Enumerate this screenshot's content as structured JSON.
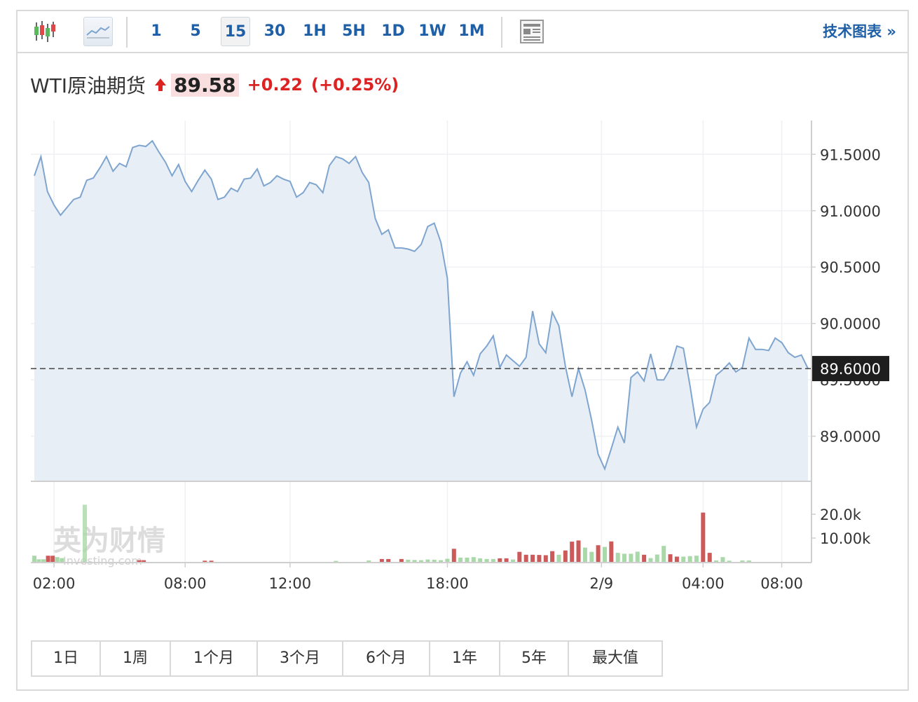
{
  "toolbar": {
    "candlestick_icon": "candlestick-icon",
    "line_icon": "area-chart-icon",
    "timeframes": [
      "1",
      "5",
      "15",
      "30",
      "1H",
      "5H",
      "1D",
      "1W",
      "1M"
    ],
    "active_timeframe": "15",
    "news_icon": "news-icon",
    "tech_chart_label": "技术图表 »"
  },
  "instrument": {
    "name": "WTI原油期货",
    "price": "89.58",
    "change": "+0.22",
    "change_pct": "(+0.25%)",
    "direction_icon": "up-arrow-icon"
  },
  "colors": {
    "line": "#7ea5cf",
    "area": "#e8eef6",
    "up": "#dd2222",
    "vol_up": "#cc5a5a",
    "vol_down": "#a9d8a9",
    "link": "#1f5fa6"
  },
  "chart_data": {
    "type": "area",
    "price_ylim": [
      88.6,
      91.8
    ],
    "y_ticks": [
      "91.5000",
      "91.0000",
      "90.5000",
      "90.0000",
      "89.5000",
      "89.0000"
    ],
    "current_value": "89.6000",
    "volume_ticks": [
      "20.0k",
      "10.00k"
    ],
    "volume_ylim": [
      0,
      30000
    ],
    "x_ticks": [
      "02:00",
      "08:00",
      "12:00",
      "18:00",
      "2/9",
      "04:00",
      "08:00"
    ],
    "watermark": "英为财情 Investing.com",
    "series": [
      {
        "values": [
          91.31,
          91.48,
          91.17,
          91.05,
          90.96,
          91.03,
          91.1,
          91.12,
          91.27,
          91.29,
          91.38,
          91.48,
          91.35,
          91.42,
          91.39,
          91.56,
          91.58,
          91.57,
          91.62,
          91.52,
          91.43,
          91.31,
          91.41,
          91.26,
          91.17,
          91.27,
          91.36,
          91.28,
          91.1,
          91.12,
          91.2,
          91.17,
          91.28,
          91.29,
          91.37,
          91.22,
          91.25,
          91.31,
          91.28,
          91.26,
          91.12,
          91.16,
          91.25,
          91.23,
          91.16,
          91.4,
          91.48,
          91.46,
          91.42,
          91.48,
          91.34,
          91.25,
          90.93,
          90.79,
          90.83,
          90.67,
          90.67,
          90.66,
          90.64,
          90.7,
          90.86,
          90.89,
          90.72,
          90.4,
          89.35,
          89.56,
          89.66,
          89.54,
          89.73,
          89.8,
          89.89,
          89.61,
          89.72,
          89.67,
          89.62,
          89.7,
          90.11,
          89.82,
          89.74,
          90.1,
          89.98,
          89.62,
          89.35,
          89.6,
          89.41,
          89.14,
          88.84,
          88.71,
          88.89,
          89.08,
          88.94,
          89.52,
          89.57,
          89.49,
          89.73,
          89.5,
          89.5,
          89.6,
          89.8,
          89.78,
          89.45,
          89.08,
          89.24,
          89.3,
          89.54,
          89.59,
          89.65,
          89.57,
          89.61,
          89.87,
          89.77,
          89.77,
          89.76,
          89.87,
          89.83,
          89.74,
          89.7,
          89.72,
          89.6
        ]
      }
    ],
    "volume": [
      2600,
      1100,
      1100,
      2600,
      2600,
      2000,
      1600,
      0,
      0,
      0,
      0,
      0,
      0,
      0,
      0,
      0,
      0,
      0,
      0,
      0,
      0,
      0,
      0,
      0,
      0,
      0,
      0,
      0,
      0,
      0,
      0,
      0,
      0,
      0,
      0,
      0,
      0,
      0,
      0,
      0,
      0,
      0,
      0,
      0,
      0,
      0,
      0,
      0,
      0,
      0,
      0,
      0,
      0,
      0,
      0,
      0,
      0,
      0,
      0,
      0,
      0,
      0,
      0,
      0,
      0,
      0,
      0,
      0,
      0,
      0,
      0,
      0,
      0,
      0,
      0,
      0,
      0,
      0,
      0,
      0,
      0,
      0,
      0,
      0,
      0,
      0,
      0,
      0,
      0,
      0,
      0,
      0,
      0,
      0,
      0,
      0,
      0,
      0,
      0,
      0,
      0,
      0,
      0,
      0,
      0,
      0,
      0,
      0,
      0,
      0,
      0,
      0,
      0,
      0,
      0,
      0,
      0,
      0,
      0
    ],
    "volume_bars": [
      {
        "t": 0.0,
        "v": 2600,
        "up": false
      },
      {
        "t": 0.7,
        "v": 1100,
        "up": false
      },
      {
        "t": 1.4,
        "v": 1100,
        "up": false
      },
      {
        "t": 2.1,
        "v": 2600,
        "up": true
      },
      {
        "t": 2.8,
        "v": 2600,
        "up": true
      },
      {
        "t": 3.5,
        "v": 2000,
        "up": false
      },
      {
        "t": 4.2,
        "v": 1600,
        "up": false
      },
      {
        "t": 16.0,
        "v": 700,
        "up": true
      },
      {
        "t": 16.7,
        "v": 700,
        "up": true
      },
      {
        "t": 26.0,
        "v": 500,
        "up": true
      },
      {
        "t": 27.0,
        "v": 500,
        "up": true
      },
      {
        "t": 46.0,
        "v": 400,
        "up": false
      },
      {
        "t": 51.0,
        "v": 600,
        "up": false
      },
      {
        "t": 53.0,
        "v": 1200,
        "up": true
      },
      {
        "t": 54.0,
        "v": 1200,
        "up": true
      },
      {
        "t": 56.0,
        "v": 1200,
        "up": true
      },
      {
        "t": 57.0,
        "v": 900,
        "up": false
      },
      {
        "t": 58.0,
        "v": 800,
        "up": false
      },
      {
        "t": 59.0,
        "v": 700,
        "up": false
      },
      {
        "t": 60.0,
        "v": 1000,
        "up": false
      },
      {
        "t": 61.0,
        "v": 900,
        "up": false
      },
      {
        "t": 62.0,
        "v": 700,
        "up": false
      },
      {
        "t": 63.0,
        "v": 1300,
        "up": false
      },
      {
        "t": 64.0,
        "v": 5500,
        "up": true
      },
      {
        "t": 65.0,
        "v": 1800,
        "up": false
      },
      {
        "t": 66.0,
        "v": 1800,
        "up": false
      },
      {
        "t": 67.0,
        "v": 2000,
        "up": false
      },
      {
        "t": 68.0,
        "v": 1500,
        "up": false
      },
      {
        "t": 69.0,
        "v": 1200,
        "up": false
      },
      {
        "t": 70.0,
        "v": 1200,
        "up": false
      },
      {
        "t": 71.0,
        "v": 1500,
        "up": true
      },
      {
        "t": 72.0,
        "v": 1500,
        "up": true
      },
      {
        "t": 73.0,
        "v": 1000,
        "up": false
      },
      {
        "t": 74.0,
        "v": 4200,
        "up": true
      },
      {
        "t": 75.0,
        "v": 3000,
        "up": true
      },
      {
        "t": 76.0,
        "v": 3000,
        "up": true
      },
      {
        "t": 77.0,
        "v": 2900,
        "up": true
      },
      {
        "t": 78.0,
        "v": 2800,
        "up": true
      },
      {
        "t": 79.0,
        "v": 4500,
        "up": true
      },
      {
        "t": 80.0,
        "v": 3000,
        "up": false
      },
      {
        "t": 81.0,
        "v": 4800,
        "up": true
      },
      {
        "t": 82.0,
        "v": 8500,
        "up": true
      },
      {
        "t": 83.0,
        "v": 9000,
        "up": true
      },
      {
        "t": 84.0,
        "v": 6000,
        "up": false
      },
      {
        "t": 85.0,
        "v": 4200,
        "up": false
      },
      {
        "t": 86.0,
        "v": 7000,
        "up": true
      },
      {
        "t": 87.0,
        "v": 6300,
        "up": false
      },
      {
        "t": 88.0,
        "v": 8600,
        "up": true
      },
      {
        "t": 89.0,
        "v": 3800,
        "up": false
      },
      {
        "t": 90.0,
        "v": 3400,
        "up": false
      },
      {
        "t": 91.0,
        "v": 3400,
        "up": false
      },
      {
        "t": 92.0,
        "v": 4300,
        "up": false
      },
      {
        "t": 93.0,
        "v": 3000,
        "up": true
      },
      {
        "t": 94.0,
        "v": 1600,
        "up": false
      },
      {
        "t": 95.0,
        "v": 3100,
        "up": false
      },
      {
        "t": 96.0,
        "v": 6700,
        "up": false
      },
      {
        "t": 97.0,
        "v": 3200,
        "up": true
      },
      {
        "t": 98.0,
        "v": 2200,
        "up": true
      },
      {
        "t": 99.0,
        "v": 2200,
        "up": false
      },
      {
        "t": 100.0,
        "v": 2400,
        "up": false
      },
      {
        "t": 101.0,
        "v": 2600,
        "up": false
      },
      {
        "t": 102.0,
        "v": 20700,
        "up": true
      },
      {
        "t": 103.0,
        "v": 3800,
        "up": true
      },
      {
        "t": 104.0,
        "v": 600,
        "up": false
      },
      {
        "t": 105.0,
        "v": 2000,
        "up": false
      },
      {
        "t": 106.0,
        "v": 500,
        "up": false
      },
      {
        "t": 108.0,
        "v": 600,
        "up": false
      },
      {
        "t": 109.0,
        "v": 600,
        "up": false
      }
    ],
    "x_tick_index": [
      3,
      23,
      39,
      63,
      86.5,
      102,
      114
    ]
  },
  "range_buttons": [
    "1日",
    "1周",
    "1个月",
    "3个月",
    "6个月",
    "1年",
    "5年",
    "最大值"
  ]
}
